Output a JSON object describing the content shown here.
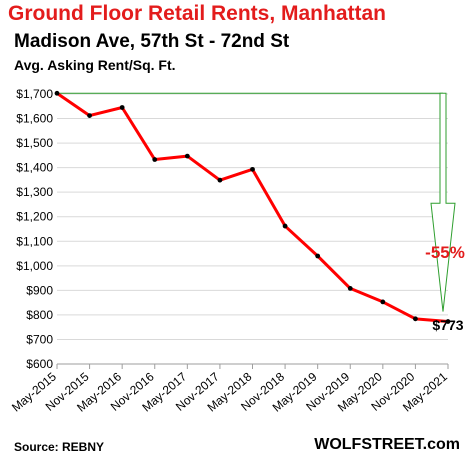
{
  "chart_data": {
    "type": "line",
    "title": "Ground  Floor Retail Rents, Manhattan",
    "subtitle": "Madison Ave, 57th St - 72nd St",
    "ylabel": "Avg. Asking Rent/Sq. Ft.",
    "categories": [
      "May-2015",
      "Nov-2015",
      "May-2016",
      "Nov-2016",
      "May-2017",
      "Nov-2017",
      "May-2018",
      "Nov-2018",
      "May-2019",
      "Nov-2019",
      "May-2020",
      "Nov-2020",
      "May-2021"
    ],
    "series": [
      {
        "values": [
          1703,
          1612,
          1645,
          1433,
          1447,
          1349,
          1393,
          1162,
          1040,
          908,
          853,
          784,
          773
        ]
      }
    ],
    "ylim": [
      600,
      1700
    ],
    "yticks": [
      600,
      700,
      800,
      900,
      1000,
      1100,
      1200,
      1300,
      1400,
      1500,
      1600,
      1700
    ],
    "ytick_labels": [
      "$600",
      "$700",
      "$800",
      "$900",
      "$1,000",
      "$1,100",
      "$1,200",
      "$1,300",
      "$1,400",
      "$1,500",
      "$1,600",
      "$1,700"
    ],
    "grid": "horizontal",
    "line_color": "#ff0000",
    "annotations": {
      "last_value_label": "$773",
      "change_label": "-55%",
      "arrow_color": "#2e9e2e",
      "change_color": "#e31c1c"
    }
  },
  "footer": {
    "source": "Source: REBNY",
    "brand": "WOLFSTREET.com"
  }
}
